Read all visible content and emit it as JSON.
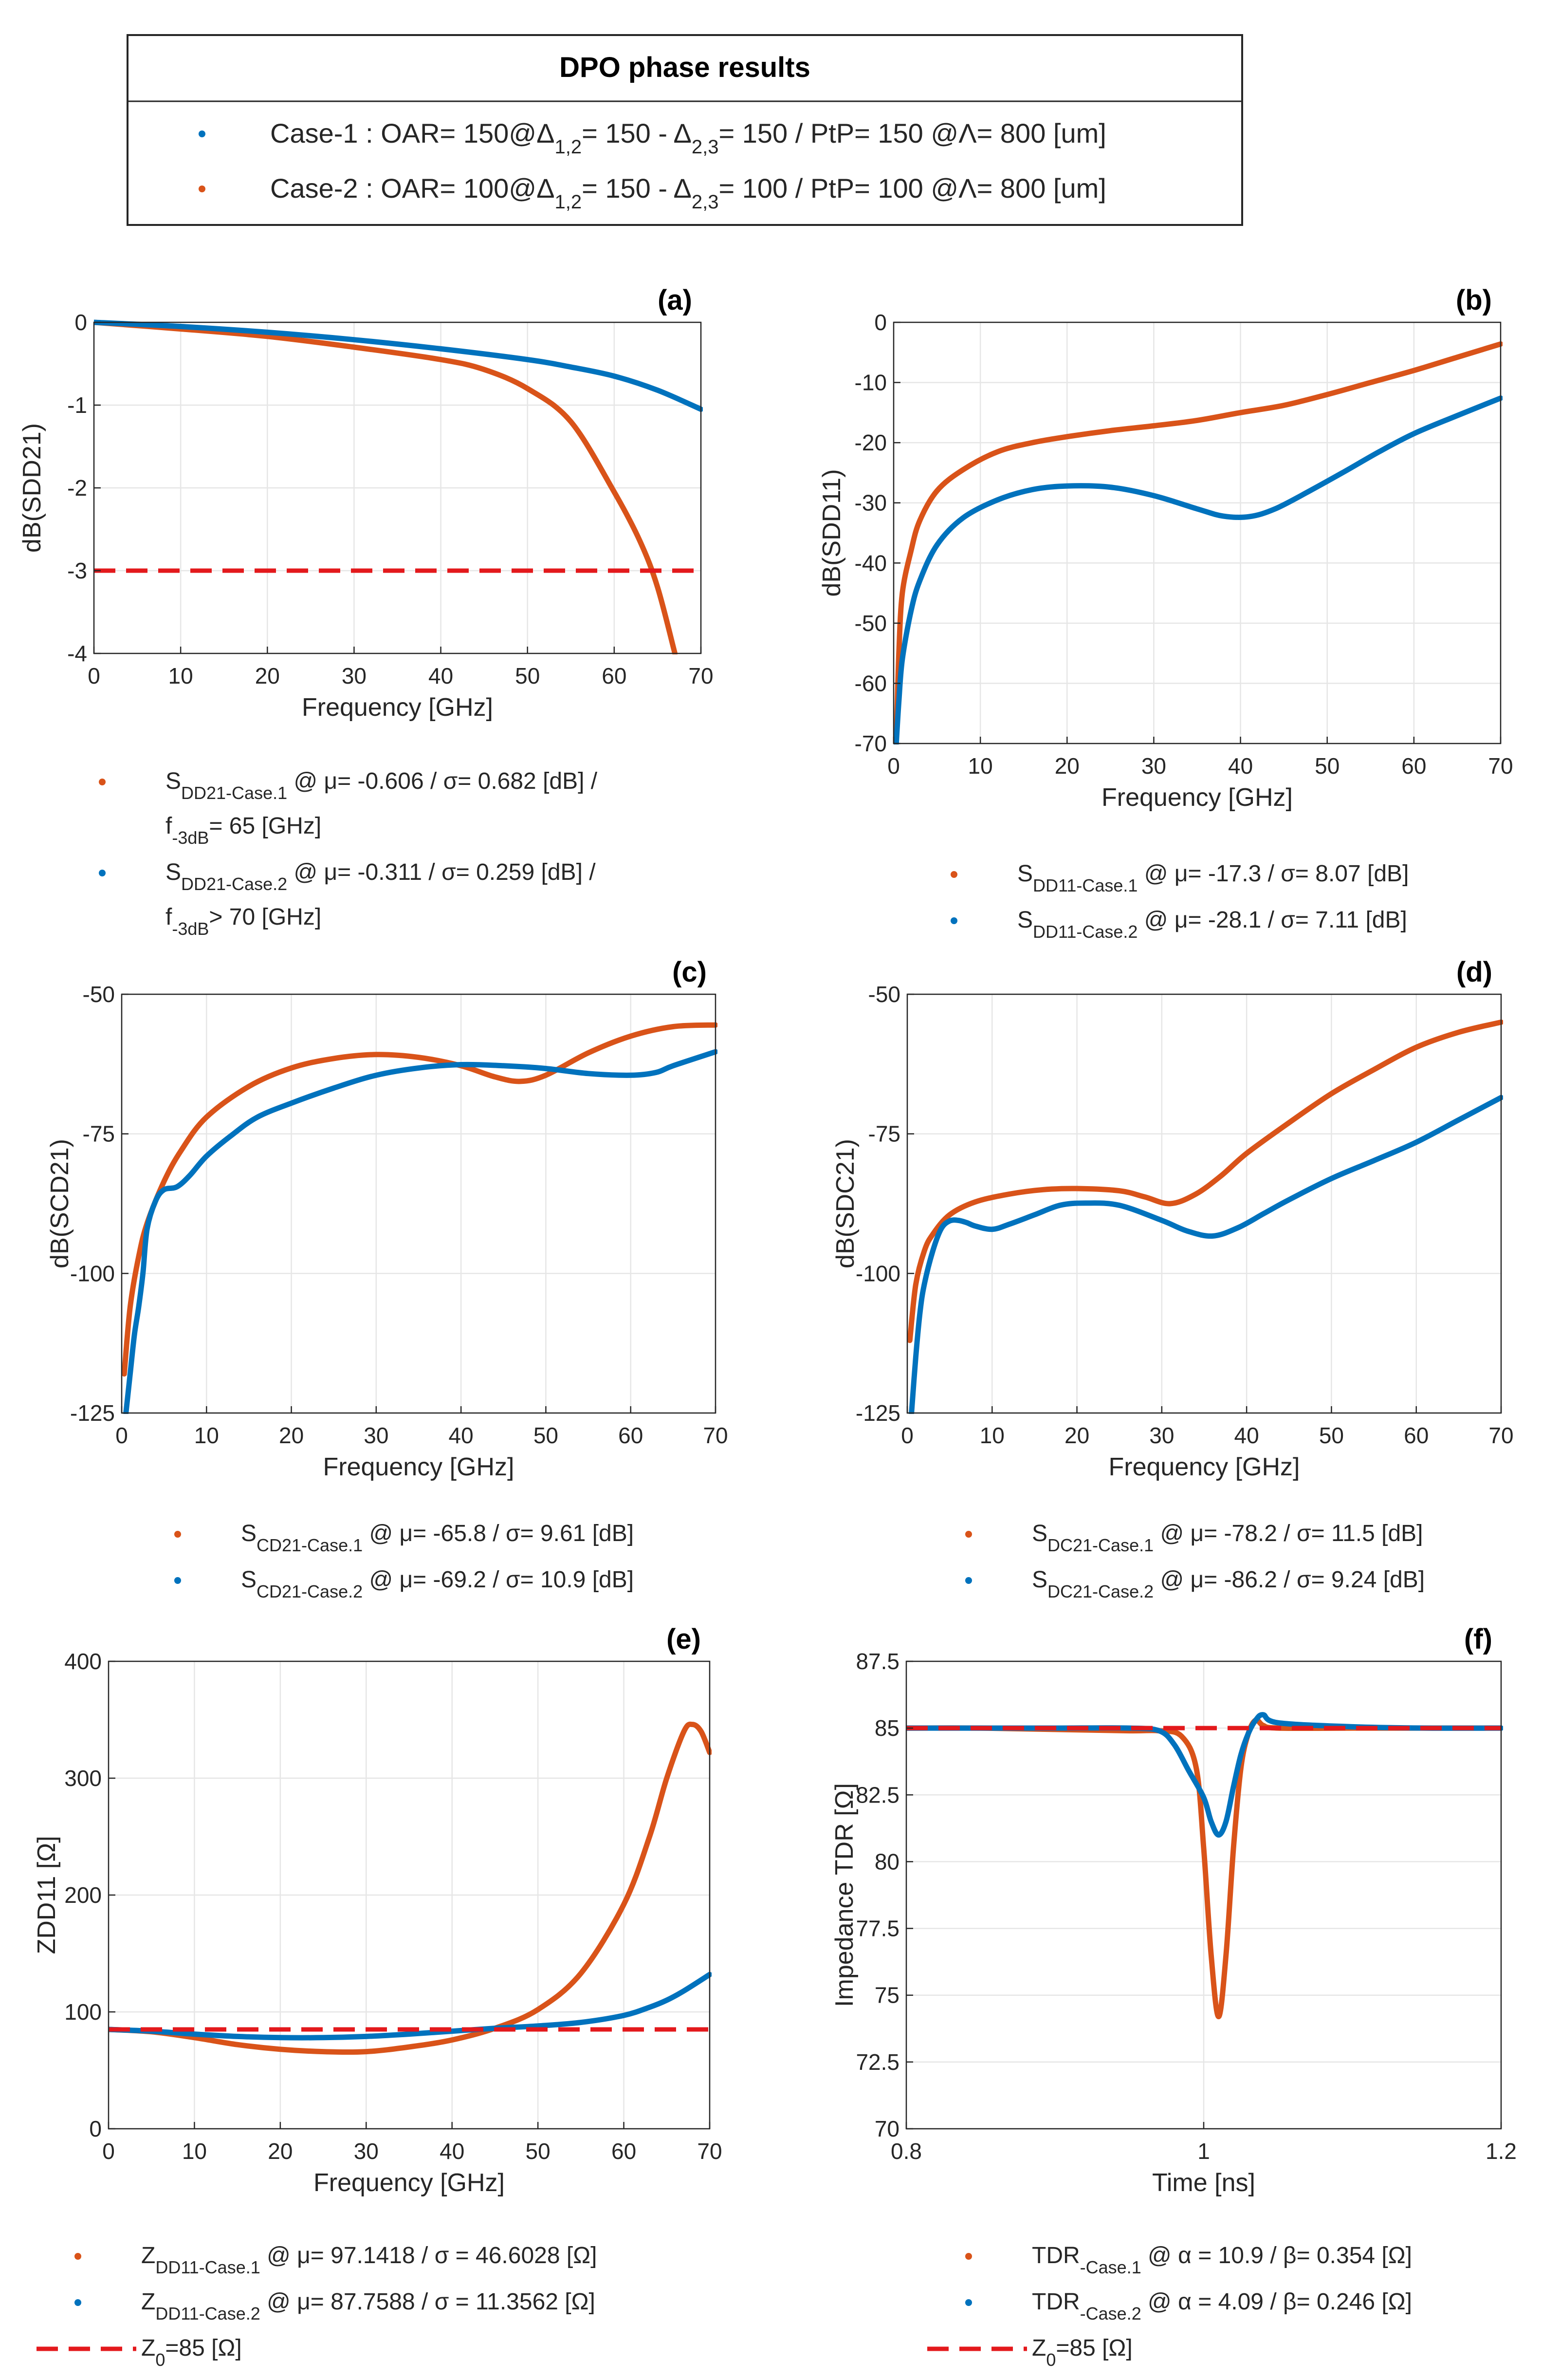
{
  "figure": {
    "legend_title": "DPO phase results",
    "legend_entries": [
      {
        "id": "case1",
        "color": "#0072BD",
        "text": "Case-1 : OAR= 150@Δ",
        "sub1": "1,2",
        "mid": "= 150 - Δ",
        "sub2": "2,3",
        "tail": "= 150 / PtP= 150 @Λ= 800 [um]"
      },
      {
        "id": "case2",
        "color": "#D95319",
        "text": "Case-2 : OAR= 100@Δ",
        "sub1": "1,2",
        "mid": "= 150 - Δ",
        "sub2": "2,3",
        "tail": "= 100 / PtP= 100 @Λ= 800 [um]"
      }
    ]
  },
  "colors": {
    "orange": "#D95319",
    "blue": "#0072BD",
    "red_dashed": "#E3191C",
    "grid": "#E6E6E6",
    "axis": "#262626"
  },
  "chart_data": [
    {
      "id": "a",
      "panel_label": "(a)",
      "type": "line",
      "xlabel": "Frequency [GHz]",
      "ylabel": "dB(SDD21)",
      "xlim": [
        0,
        70
      ],
      "ylim": [
        -4,
        0
      ],
      "xticks": [
        0,
        10,
        20,
        30,
        40,
        50,
        60,
        70
      ],
      "yticks": [
        0,
        -1,
        -2,
        -3,
        -4
      ],
      "series": [
        {
          "name": "Case-1 orange",
          "color": "#D95319",
          "x": [
            0,
            10,
            20,
            30,
            40,
            45,
            50,
            55,
            60,
            63,
            65,
            67
          ],
          "y": [
            0,
            -0.08,
            -0.17,
            -0.3,
            -0.45,
            -0.57,
            -0.8,
            -1.2,
            -2.05,
            -2.65,
            -3.2,
            -4.0
          ]
        },
        {
          "name": "Case-2 blue",
          "color": "#0072BD",
          "x": [
            0,
            10,
            20,
            30,
            40,
            50,
            55,
            60,
            65,
            70
          ],
          "y": [
            0,
            -0.05,
            -0.12,
            -0.21,
            -0.32,
            -0.45,
            -0.54,
            -0.65,
            -0.82,
            -1.05
          ]
        },
        {
          "name": "-3dB limit",
          "color": "#E3191C",
          "dashed": true,
          "x": [
            0,
            70
          ],
          "y": [
            -3,
            -3
          ]
        }
      ],
      "legend": [
        {
          "color": "#D95319",
          "main": "S",
          "sub": "DD21-Case.1",
          "text": " @ μ=  -0.606 / σ=  0.682 [dB] /",
          "line2_main": "f",
          "line2_sub": "-3dB",
          "line2_text": "= 65 [GHz]"
        },
        {
          "color": "#0072BD",
          "main": "S",
          "sub": "DD21-Case.2",
          "text": " @ μ=  -0.311 / σ=  0.259 [dB] /",
          "line2_main": "f",
          "line2_sub": "-3dB",
          "line2_text": "> 70 [GHz]"
        }
      ]
    },
    {
      "id": "b",
      "panel_label": "(b)",
      "type": "line",
      "xlabel": "Frequency [GHz]",
      "ylabel": "dB(SDD11)",
      "xlim": [
        0,
        70
      ],
      "ylim": [
        -70,
        0
      ],
      "xticks": [
        0,
        10,
        20,
        30,
        40,
        50,
        60,
        70
      ],
      "yticks": [
        0,
        -10,
        -20,
        -30,
        -40,
        -50,
        -60,
        -70
      ],
      "series": [
        {
          "name": "Case-1 orange",
          "color": "#D95319",
          "x": [
            0.3,
            0.6,
            1,
            2,
            3,
            5,
            8,
            12,
            16,
            20,
            25,
            30,
            35,
            40,
            45,
            50,
            55,
            60,
            65,
            70
          ],
          "y": [
            -70,
            -55,
            -45,
            -38,
            -33,
            -28,
            -24.5,
            -21.5,
            -20,
            -19,
            -18,
            -17.2,
            -16.3,
            -15,
            -13.8,
            -12,
            -10,
            -8,
            -5.8,
            -3.6
          ]
        },
        {
          "name": "Case-2 blue",
          "color": "#0072BD",
          "x": [
            0.3,
            0.6,
            1,
            2,
            3,
            5,
            8,
            12,
            16,
            20,
            25,
            30,
            35,
            38,
            41,
            44,
            48,
            52,
            56,
            60,
            65,
            70
          ],
          "y": [
            -70,
            -63,
            -56,
            -48,
            -43,
            -37,
            -32.5,
            -29.5,
            -27.8,
            -27.2,
            -27.4,
            -28.8,
            -31,
            -32.2,
            -32.3,
            -31,
            -28,
            -24.8,
            -21.5,
            -18.5,
            -15.5,
            -12.6
          ]
        }
      ],
      "legend": [
        {
          "color": "#D95319",
          "main": "S",
          "sub": "DD11-Case.1",
          "text": " @ μ=  -17.3 / σ=  8.07 [dB]"
        },
        {
          "color": "#0072BD",
          "main": "S",
          "sub": "DD11-Case.2",
          "text": " @ μ=  -28.1 / σ=  7.11 [dB]"
        }
      ]
    },
    {
      "id": "c",
      "panel_label": "(c)",
      "type": "line",
      "xlabel": "Frequency [GHz]",
      "ylabel": "dB(SCD21)",
      "xlim": [
        0,
        70
      ],
      "ylim": [
        -125,
        -50
      ],
      "xticks": [
        0,
        10,
        20,
        30,
        40,
        50,
        60,
        70
      ],
      "yticks": [
        -50,
        -75,
        -100,
        -125
      ],
      "series": [
        {
          "name": "Case-1 orange",
          "color": "#D95319",
          "x": [
            0.3,
            1,
            2,
            3,
            5,
            7,
            10,
            15,
            20,
            25,
            30,
            35,
            40,
            44,
            47,
            50,
            55,
            60,
            65,
            70
          ],
          "y": [
            -118,
            -106,
            -97,
            -91,
            -83.5,
            -78,
            -72,
            -66.5,
            -63.2,
            -61.5,
            -60.8,
            -61.3,
            -62.8,
            -64.8,
            -65.6,
            -64.5,
            -60.5,
            -57.5,
            -55.8,
            -55.5
          ]
        },
        {
          "name": "Case-2 blue",
          "color": "#0072BD",
          "x": [
            0.5,
            1,
            1.5,
            2,
            2.5,
            3,
            4,
            5,
            6.5,
            8,
            10,
            13,
            16,
            20,
            25,
            30,
            35,
            40,
            45,
            50,
            55,
            60,
            63,
            65,
            70
          ],
          "y": [
            -125,
            -118,
            -111,
            -106,
            -100,
            -92,
            -87,
            -85,
            -84.5,
            -82.5,
            -79,
            -75.2,
            -72,
            -69.5,
            -66.8,
            -64.5,
            -63.2,
            -62.6,
            -62.8,
            -63.3,
            -64.2,
            -64.5,
            -64,
            -62.8,
            -60.3
          ]
        }
      ],
      "legend": [
        {
          "color": "#D95319",
          "main": "S",
          "sub": "CD21-Case.1",
          "text": " @ μ=  -65.8 / σ=  9.61 [dB]"
        },
        {
          "color": "#0072BD",
          "main": "S",
          "sub": "CD21-Case.2",
          "text": " @ μ=  -69.2 / σ=  10.9 [dB]"
        }
      ]
    },
    {
      "id": "d",
      "panel_label": "(d)",
      "type": "line",
      "xlabel": "Frequency [GHz]",
      "ylabel": "dB(SDC21)",
      "xlim": [
        0,
        70
      ],
      "ylim": [
        -125,
        -50
      ],
      "xticks": [
        0,
        10,
        20,
        30,
        40,
        50,
        60,
        70
      ],
      "yticks": [
        -50,
        -75,
        -100,
        -125
      ],
      "series": [
        {
          "name": "Case-1 orange",
          "color": "#D95319",
          "x": [
            0.3,
            1,
            2,
            3,
            5,
            8,
            12,
            16,
            20,
            25,
            28,
            31,
            34,
            37,
            40,
            45,
            50,
            55,
            60,
            65,
            70
          ],
          "y": [
            -112,
            -102,
            -96,
            -93,
            -89.5,
            -87.2,
            -85.8,
            -85,
            -84.8,
            -85.2,
            -86.3,
            -87.5,
            -85.8,
            -82.5,
            -78.5,
            -73,
            -67.8,
            -63.5,
            -59.5,
            -56.8,
            -55
          ]
        },
        {
          "name": "Case-2 blue",
          "color": "#0072BD",
          "x": [
            0.5,
            1,
            1.5,
            2,
            3,
            4,
            5,
            6,
            7,
            8,
            10,
            12,
            15,
            18,
            21,
            25,
            30,
            33,
            36,
            39,
            42,
            45,
            50,
            55,
            60,
            65,
            70
          ],
          "y": [
            -125,
            -115,
            -107,
            -102,
            -96,
            -92,
            -90.6,
            -90.5,
            -90.9,
            -91.5,
            -92.1,
            -91.2,
            -89.5,
            -87.8,
            -87.4,
            -87.8,
            -90.5,
            -92.4,
            -93.3,
            -91.8,
            -89.3,
            -86.8,
            -83,
            -79.8,
            -76.5,
            -72.5,
            -68.5
          ]
        }
      ],
      "legend": [
        {
          "color": "#D95319",
          "main": "S",
          "sub": "DC21-Case.1",
          "text": " @ μ=  -78.2 / σ=  11.5 [dB]"
        },
        {
          "color": "#0072BD",
          "main": "S",
          "sub": "DC21-Case.2",
          "text": " @ μ=  -86.2 / σ=  9.24 [dB]"
        }
      ]
    },
    {
      "id": "e",
      "panel_label": "(e)",
      "type": "line",
      "xlabel": "Frequency [GHz]",
      "ylabel": "ZDD11 [Ω]",
      "xlim": [
        0,
        70
      ],
      "ylim": [
        0,
        400
      ],
      "xticks": [
        0,
        10,
        20,
        30,
        40,
        50,
        60,
        70
      ],
      "yticks": [
        0,
        100,
        200,
        300,
        400
      ],
      "series": [
        {
          "name": "Case-1 orange",
          "color": "#D95319",
          "x": [
            0,
            5,
            10,
            15,
            20,
            25,
            30,
            35,
            40,
            45,
            50,
            55,
            60,
            63,
            65,
            67,
            68,
            69,
            70
          ],
          "y": [
            85,
            83,
            78,
            72,
            68,
            66,
            66,
            70,
            76,
            86,
            102,
            133,
            192,
            250,
            300,
            340,
            346,
            340,
            322
          ]
        },
        {
          "name": "Case-2 blue",
          "color": "#0072BD",
          "x": [
            0,
            5,
            10,
            15,
            20,
            25,
            30,
            35,
            40,
            45,
            50,
            55,
            60,
            63,
            65,
            67,
            70
          ],
          "y": [
            85,
            83.5,
            81,
            79,
            78,
            78,
            79,
            81,
            83.5,
            86,
            88,
            91,
            97,
            104,
            110,
            118,
            132
          ]
        },
        {
          "name": "Z0",
          "color": "#E3191C",
          "dashed": true,
          "x": [
            0,
            70
          ],
          "y": [
            85,
            85
          ]
        }
      ],
      "legend": [
        {
          "color": "#D95319",
          "main": "Z",
          "sub": "DD11-Case.1",
          "text": " @ μ=  97.1418 / σ =  46.6028 [Ω]"
        },
        {
          "color": "#0072BD",
          "main": "Z",
          "sub": "DD11-Case.2",
          "text": " @ μ=  87.7588 / σ =  11.3562 [Ω]"
        },
        {
          "color": "#E3191C",
          "dashed": true,
          "main": "Z",
          "sub": "0",
          "text": "=85 [Ω]"
        }
      ]
    },
    {
      "id": "f",
      "panel_label": "(f)",
      "type": "line",
      "xlabel": "Time [ns]",
      "ylabel": "Impedance TDR [Ω]",
      "xlim": [
        0.8,
        1.2
      ],
      "ylim": [
        70,
        87.5
      ],
      "xticks": [
        0.8,
        1,
        1.2
      ],
      "yticks": [
        87.5,
        85,
        82.5,
        80,
        77.5,
        75,
        72.5,
        70
      ],
      "series": [
        {
          "name": "Case-1 orange",
          "color": "#D95319",
          "x": [
            0.8,
            0.85,
            0.9,
            0.95,
            0.97,
            0.985,
            0.995,
            1.0,
            1.005,
            1.01,
            1.015,
            1.02,
            1.025,
            1.03,
            1.035,
            1.04,
            1.05,
            1.1,
            1.15,
            1.2
          ],
          "y": [
            85,
            85,
            84.95,
            84.9,
            84.9,
            84.7,
            83.5,
            80.5,
            76.5,
            74.2,
            76.5,
            80.5,
            83.5,
            84.8,
            85.3,
            85.1,
            85,
            85,
            85,
            85
          ]
        },
        {
          "name": "Case-2 blue",
          "color": "#0072BD",
          "x": [
            0.8,
            0.85,
            0.9,
            0.95,
            0.97,
            0.98,
            0.99,
            1.0,
            1.005,
            1.01,
            1.015,
            1.02,
            1.025,
            1.03,
            1.035,
            1.04,
            1.05,
            1.1,
            1.15,
            1.2
          ],
          "y": [
            85,
            85,
            85,
            85,
            84.9,
            84.4,
            83.4,
            82.4,
            81.5,
            81,
            81.5,
            82.8,
            84,
            84.8,
            85.3,
            85.5,
            85.2,
            85.05,
            85,
            85
          ]
        },
        {
          "name": "Z0",
          "color": "#E3191C",
          "dashed": true,
          "x": [
            0.8,
            1.2
          ],
          "y": [
            85,
            85
          ]
        }
      ],
      "legend": [
        {
          "color": "#D95319",
          "main": "TDR",
          "sub": "-Case.1",
          "text": " @ α =  10.9 / β=  0.354 [Ω]"
        },
        {
          "color": "#0072BD",
          "main": "TDR",
          "sub": "-Case.2",
          "text": " @ α =  4.09 / β=  0.246 [Ω]"
        },
        {
          "color": "#E3191C",
          "dashed": true,
          "main": "Z",
          "sub": "0",
          "text": "=85 [Ω]"
        }
      ]
    }
  ]
}
